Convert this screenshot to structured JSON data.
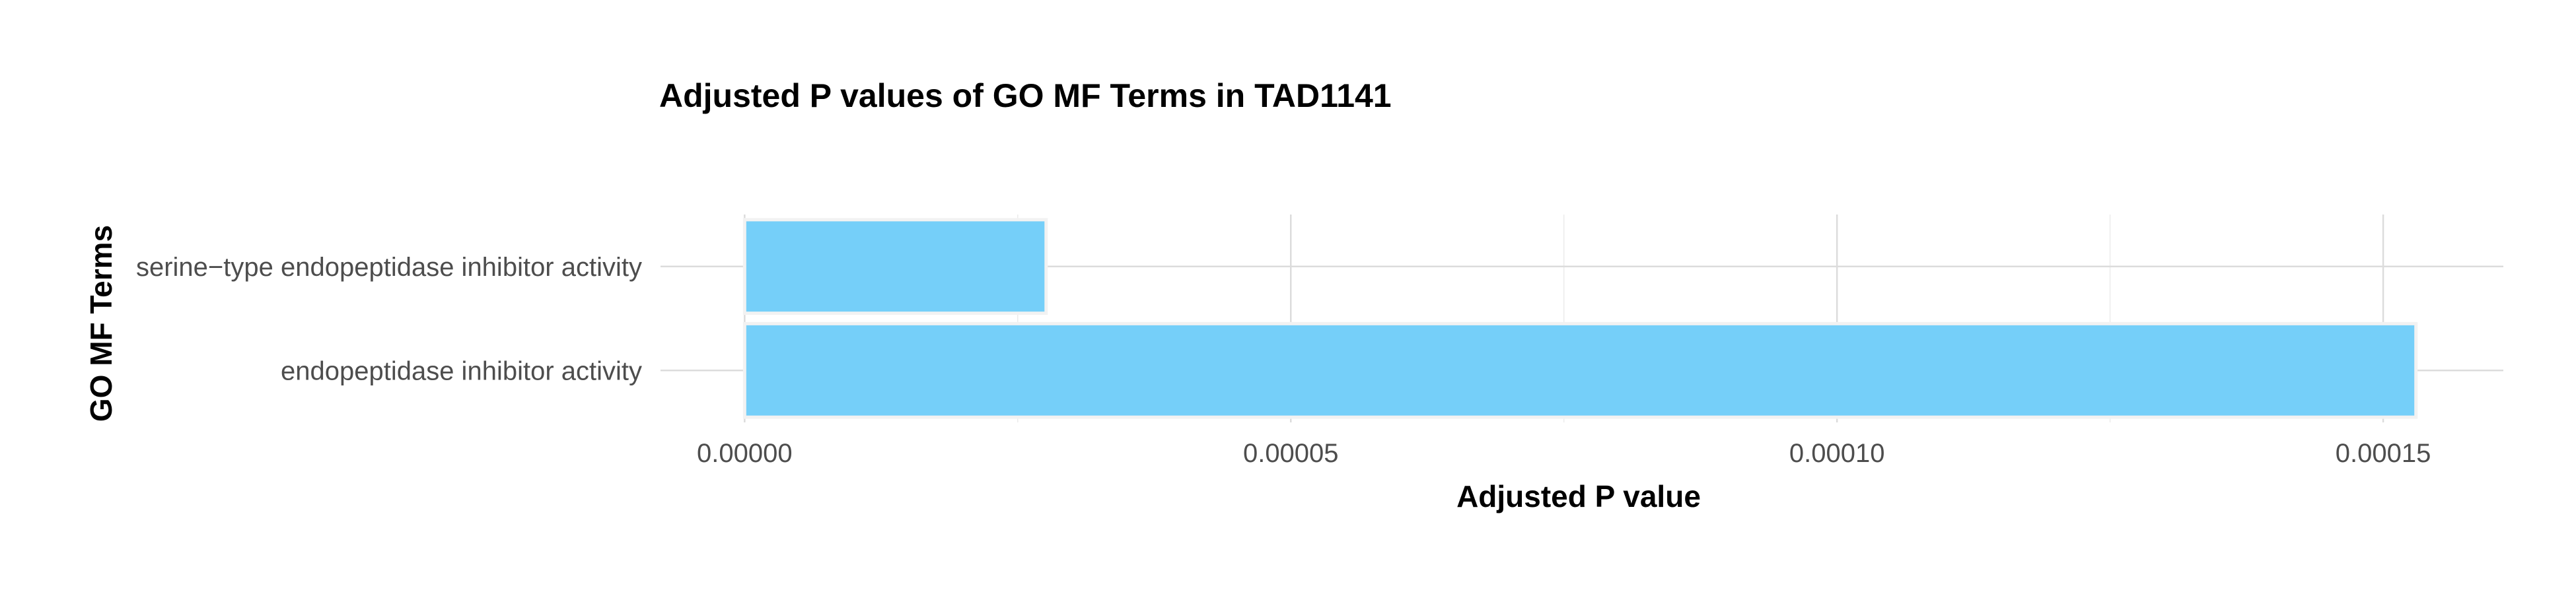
{
  "chart_data": {
    "type": "bar",
    "orientation": "horizontal",
    "title": "Adjusted P values of GO MF Terms in TAD1141",
    "xlabel": "Adjusted P value",
    "ylabel": "GO MF Terms",
    "categories": [
      "serine−type endopeptidase inhibitor activity",
      "endopeptidase inhibitor activity"
    ],
    "values": [
      2.76e-05,
      0.000153
    ],
    "xlim": [
      -7.7e-06,
      0.000161
    ],
    "xticks": [
      0,
      5e-05,
      0.0001,
      0.00015
    ],
    "xtick_labels": [
      "0.00000",
      "0.00005",
      "0.00010",
      "0.00015"
    ],
    "grid": true,
    "bar_color": "#75cff9"
  }
}
